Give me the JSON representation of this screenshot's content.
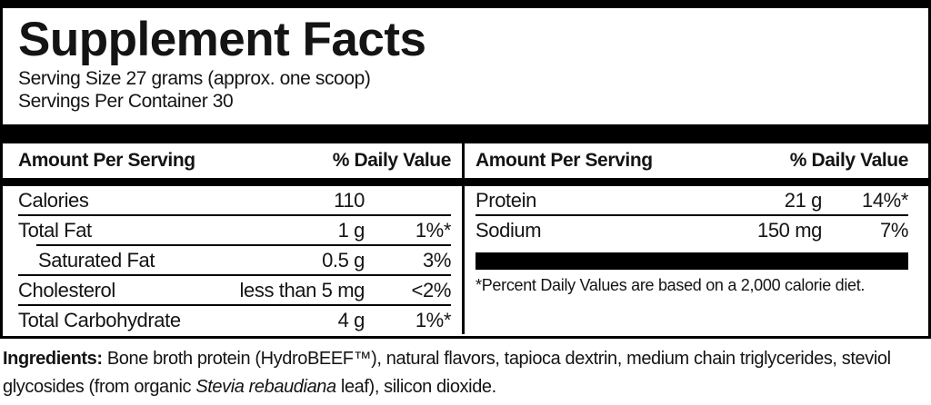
{
  "label": {
    "title": "Supplement Facts",
    "serving_size": "Serving Size 27 grams (approx. one scoop)",
    "servings_per_container": "Servings Per Container 30",
    "left": {
      "header_amount": "Amount Per Serving",
      "header_dv": "% Daily Value",
      "rows": [
        {
          "name": "Calories",
          "amount": "110",
          "dv": ""
        },
        {
          "name": "Total Fat",
          "amount": "1 g",
          "dv": "1%*"
        },
        {
          "name": "Saturated Fat",
          "amount": "0.5 g",
          "dv": "3%"
        },
        {
          "name": "Cholesterol",
          "amount": "less than 5 mg",
          "dv": "<2%"
        },
        {
          "name": "Total Carbohydrate",
          "amount": "4 g",
          "dv": "1%*"
        }
      ]
    },
    "right": {
      "header_amount": "Amount Per Serving",
      "header_dv": "% Daily Value",
      "rows": [
        {
          "name": "Protein",
          "amount": "21 g",
          "dv": "14%*"
        },
        {
          "name": "Sodium",
          "amount": "150 mg",
          "dv": "7%"
        }
      ],
      "footnote": "*Percent Daily Values are based on a 2,000 calorie diet."
    },
    "ingredients": {
      "label": "Ingredients:",
      "text_before_italic": " Bone broth protein (HydroBEEF™), natural flavors, tapioca dextrin, medium chain triglycerides, steviol glycosides (from organic ",
      "italic": "Stevia rebaudiana",
      "text_after_italic": " leaf), silicon dioxide."
    },
    "colors": {
      "ink": "#141414",
      "bar": "#000000",
      "background": "#ffffff"
    }
  }
}
